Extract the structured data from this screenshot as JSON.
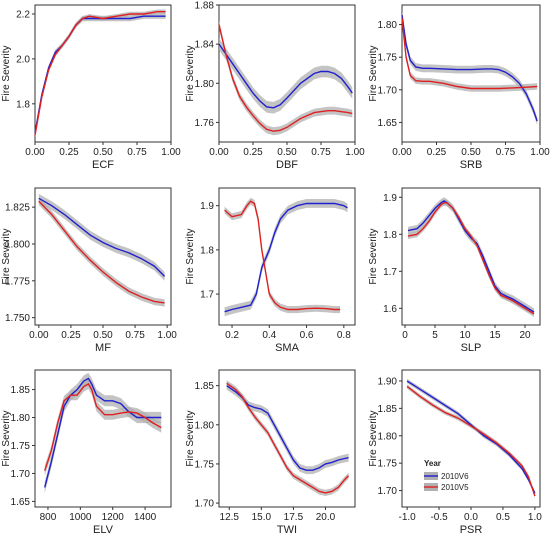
{
  "ylabel": "Fire Severity",
  "legend": {
    "title": "Year",
    "entries": [
      "2010V6",
      "2010V5"
    ],
    "colors": [
      "#2020d0",
      "#e02020"
    ],
    "ribbon_color": "#b0b0b0"
  },
  "chart_data": [
    {
      "type": "line",
      "xlabel": "ECF",
      "ylabel": "Fire Severity",
      "xlim": [
        0,
        1
      ],
      "ylim": [
        1.63,
        2.24
      ],
      "x_ticks": [
        "0.00",
        "0.25",
        "0.50",
        "0.75",
        "1.00"
      ],
      "x_tick_values": [
        0,
        0.25,
        0.5,
        0.75,
        1
      ],
      "y_ticks": [
        "1.8",
        "2.0",
        "2.2"
      ],
      "y_tick_values": [
        1.8,
        2.0,
        2.2
      ],
      "series": [
        {
          "name": "2010V6",
          "x": [
            0,
            0.05,
            0.1,
            0.15,
            0.2,
            0.25,
            0.3,
            0.35,
            0.4,
            0.5,
            0.6,
            0.7,
            0.8,
            0.9,
            0.96
          ],
          "y": [
            1.67,
            1.84,
            1.96,
            2.03,
            2.06,
            2.1,
            2.15,
            2.18,
            2.18,
            2.18,
            2.18,
            2.18,
            2.19,
            2.19,
            2.19
          ]
        },
        {
          "name": "2010V5",
          "x": [
            0,
            0.05,
            0.1,
            0.15,
            0.2,
            0.25,
            0.3,
            0.35,
            0.4,
            0.5,
            0.6,
            0.7,
            0.8,
            0.9,
            0.96
          ],
          "y": [
            1.66,
            1.83,
            1.95,
            2.02,
            2.06,
            2.1,
            2.15,
            2.18,
            2.19,
            2.18,
            2.19,
            2.2,
            2.2,
            2.21,
            2.21
          ]
        }
      ]
    },
    {
      "type": "line",
      "xlabel": "DBF",
      "ylabel": "Fire Severity",
      "xlim": [
        0,
        1
      ],
      "ylim": [
        1.74,
        1.88
      ],
      "x_ticks": [
        "0.00",
        "0.25",
        "0.50",
        "0.75",
        "1.00"
      ],
      "x_tick_values": [
        0,
        0.25,
        0.5,
        0.75,
        1
      ],
      "y_ticks": [
        "1.76",
        "1.80",
        "1.84",
        "1.88"
      ],
      "y_tick_values": [
        1.76,
        1.8,
        1.84,
        1.88
      ],
      "series": [
        {
          "name": "2010V6",
          "x": [
            0,
            0.05,
            0.1,
            0.15,
            0.2,
            0.25,
            0.3,
            0.35,
            0.4,
            0.45,
            0.5,
            0.6,
            0.7,
            0.75,
            0.8,
            0.85,
            0.9,
            0.95,
            0.98
          ],
          "y": [
            1.84,
            1.83,
            1.82,
            1.81,
            1.8,
            1.79,
            1.782,
            1.776,
            1.775,
            1.778,
            1.785,
            1.8,
            1.81,
            1.812,
            1.812,
            1.81,
            1.805,
            1.796,
            1.79
          ]
        },
        {
          "name": "2010V5",
          "x": [
            0,
            0.05,
            0.1,
            0.15,
            0.2,
            0.25,
            0.3,
            0.35,
            0.4,
            0.45,
            0.5,
            0.6,
            0.7,
            0.8,
            0.85,
            0.9,
            0.95,
            0.98
          ],
          "y": [
            1.86,
            1.83,
            1.805,
            1.787,
            1.776,
            1.767,
            1.759,
            1.753,
            1.751,
            1.752,
            1.755,
            1.764,
            1.77,
            1.772,
            1.772,
            1.771,
            1.77,
            1.769
          ]
        }
      ]
    },
    {
      "type": "line",
      "xlabel": "SRB",
      "ylabel": "Fire Severity",
      "xlim": [
        0,
        1
      ],
      "ylim": [
        1.62,
        1.83
      ],
      "x_ticks": [
        "0.00",
        "0.25",
        "0.50",
        "0.75",
        "1.00"
      ],
      "x_tick_values": [
        0,
        0.25,
        0.5,
        0.75,
        1
      ],
      "y_ticks": [
        "1.65",
        "1.70",
        "1.75",
        "1.80"
      ],
      "y_tick_values": [
        1.65,
        1.7,
        1.75,
        1.8
      ],
      "series": [
        {
          "name": "2010V6",
          "x": [
            0,
            0.03,
            0.06,
            0.1,
            0.15,
            0.2,
            0.3,
            0.4,
            0.5,
            0.6,
            0.65,
            0.7,
            0.75,
            0.8,
            0.85,
            0.9,
            0.95,
            0.98
          ],
          "y": [
            1.815,
            1.77,
            1.745,
            1.735,
            1.733,
            1.733,
            1.732,
            1.731,
            1.731,
            1.732,
            1.732,
            1.731,
            1.727,
            1.72,
            1.71,
            1.694,
            1.67,
            1.652
          ]
        },
        {
          "name": "2010V5",
          "x": [
            0,
            0.03,
            0.06,
            0.1,
            0.15,
            0.2,
            0.3,
            0.4,
            0.5,
            0.6,
            0.7,
            0.8,
            0.9,
            0.98
          ],
          "y": [
            1.81,
            1.75,
            1.722,
            1.714,
            1.713,
            1.713,
            1.71,
            1.705,
            1.702,
            1.702,
            1.702,
            1.703,
            1.704,
            1.705
          ]
        }
      ]
    },
    {
      "type": "line",
      "xlabel": "MF",
      "ylabel": "Fire Severity",
      "xlim": [
        -0.03,
        1.03
      ],
      "ylim": [
        1.745,
        1.838
      ],
      "x_ticks": [
        "0.00",
        "0.25",
        "0.50",
        "0.75",
        "1.00"
      ],
      "x_tick_values": [
        0,
        0.25,
        0.5,
        0.75,
        1
      ],
      "y_ticks": [
        "1.750",
        "1.775",
        "1.800",
        "1.825"
      ],
      "y_tick_values": [
        1.75,
        1.775,
        1.8,
        1.825
      ],
      "series": [
        {
          "name": "2010V6",
          "x": [
            0,
            0.1,
            0.2,
            0.3,
            0.4,
            0.5,
            0.6,
            0.7,
            0.8,
            0.9,
            0.98
          ],
          "y": [
            1.831,
            1.826,
            1.82,
            1.813,
            1.806,
            1.801,
            1.797,
            1.794,
            1.79,
            1.785,
            1.778
          ]
        },
        {
          "name": "2010V5",
          "x": [
            0,
            0.1,
            0.2,
            0.3,
            0.4,
            0.5,
            0.6,
            0.7,
            0.8,
            0.9,
            0.98
          ],
          "y": [
            1.829,
            1.82,
            1.809,
            1.798,
            1.789,
            1.781,
            1.774,
            1.768,
            1.764,
            1.761,
            1.76
          ]
        }
      ]
    },
    {
      "type": "line",
      "xlabel": "SMA",
      "ylabel": "Fire Severity",
      "xlim": [
        0.13,
        0.86
      ],
      "ylim": [
        1.63,
        1.94
      ],
      "x_ticks": [
        "0.2",
        "0.4",
        "0.6",
        "0.8"
      ],
      "x_tick_values": [
        0.2,
        0.4,
        0.6,
        0.8
      ],
      "y_ticks": [
        "1.7",
        "1.8",
        "1.9"
      ],
      "y_tick_values": [
        1.7,
        1.8,
        1.9
      ],
      "series": [
        {
          "name": "2010V6",
          "x": [
            0.16,
            0.2,
            0.25,
            0.3,
            0.33,
            0.36,
            0.4,
            0.43,
            0.46,
            0.5,
            0.55,
            0.6,
            0.65,
            0.7,
            0.75,
            0.8,
            0.82
          ],
          "y": [
            1.66,
            1.665,
            1.67,
            1.675,
            1.7,
            1.76,
            1.8,
            1.84,
            1.87,
            1.89,
            1.9,
            1.905,
            1.905,
            1.905,
            1.905,
            1.9,
            1.895
          ]
        },
        {
          "name": "2010V5",
          "x": [
            0.16,
            0.2,
            0.25,
            0.28,
            0.3,
            0.32,
            0.34,
            0.36,
            0.38,
            0.4,
            0.43,
            0.46,
            0.5,
            0.55,
            0.6,
            0.65,
            0.7,
            0.75,
            0.78
          ],
          "y": [
            1.89,
            1.875,
            1.88,
            1.9,
            1.91,
            1.905,
            1.87,
            1.8,
            1.75,
            1.7,
            1.68,
            1.67,
            1.665,
            1.665,
            1.667,
            1.668,
            1.667,
            1.665,
            1.665
          ]
        }
      ]
    },
    {
      "type": "line",
      "xlabel": "SLP",
      "ylabel": "Fire Severity",
      "xlim": [
        -0.5,
        22.5
      ],
      "ylim": [
        1.555,
        1.925
      ],
      "x_ticks": [
        "0",
        "5",
        "10",
        "15",
        "20"
      ],
      "x_tick_values": [
        0,
        5,
        10,
        15,
        20
      ],
      "y_ticks": [
        "1.6",
        "1.7",
        "1.8",
        "1.9"
      ],
      "y_tick_values": [
        1.6,
        1.7,
        1.8,
        1.9
      ],
      "series": [
        {
          "name": "2010V6",
          "x": [
            0.5,
            2,
            3,
            4,
            5,
            6,
            6.5,
            7,
            8,
            9,
            10,
            11,
            12,
            13,
            14,
            15,
            16,
            17,
            18,
            19,
            20,
            21,
            21.5
          ],
          "y": [
            1.81,
            1.815,
            1.83,
            1.85,
            1.87,
            1.885,
            1.89,
            1.885,
            1.87,
            1.84,
            1.81,
            1.79,
            1.775,
            1.74,
            1.7,
            1.66,
            1.64,
            1.632,
            1.625,
            1.615,
            1.605,
            1.595,
            1.59
          ]
        },
        {
          "name": "2010V5",
          "x": [
            0.5,
            2,
            3,
            4,
            5,
            6,
            6.5,
            7,
            8,
            9,
            10,
            11,
            12,
            13,
            14,
            15,
            16,
            17,
            18,
            19,
            20,
            21,
            21.5
          ],
          "y": [
            1.795,
            1.8,
            1.815,
            1.835,
            1.86,
            1.88,
            1.885,
            1.885,
            1.87,
            1.845,
            1.815,
            1.795,
            1.77,
            1.73,
            1.69,
            1.655,
            1.635,
            1.628,
            1.62,
            1.61,
            1.6,
            1.59,
            1.585
          ]
        }
      ]
    },
    {
      "type": "line",
      "xlabel": "ELV",
      "ylabel": "Fire Severity",
      "xlim": [
        720,
        1560
      ],
      "ylim": [
        1.64,
        1.885
      ],
      "x_ticks": [
        "800",
        "1000",
        "1200",
        "1400"
      ],
      "x_tick_values": [
        800,
        1000,
        1200,
        1400
      ],
      "y_ticks": [
        "1.65",
        "1.70",
        "1.75",
        "1.80",
        "1.85"
      ],
      "y_tick_values": [
        1.65,
        1.7,
        1.75,
        1.8,
        1.85
      ],
      "series": [
        {
          "name": "2010V6",
          "x": [
            780,
            820,
            860,
            900,
            940,
            980,
            1020,
            1050,
            1070,
            1100,
            1150,
            1200,
            1250,
            1300,
            1350,
            1400,
            1450,
            1500
          ],
          "y": [
            1.675,
            1.72,
            1.77,
            1.82,
            1.84,
            1.85,
            1.865,
            1.87,
            1.86,
            1.84,
            1.83,
            1.83,
            1.825,
            1.81,
            1.8,
            1.8,
            1.8,
            1.8
          ]
        },
        {
          "name": "2010V5",
          "x": [
            780,
            820,
            860,
            900,
            940,
            980,
            1020,
            1050,
            1070,
            1100,
            1150,
            1200,
            1250,
            1300,
            1350,
            1400,
            1450,
            1500
          ],
          "y": [
            1.705,
            1.74,
            1.79,
            1.83,
            1.84,
            1.84,
            1.855,
            1.86,
            1.85,
            1.82,
            1.805,
            1.805,
            1.808,
            1.81,
            1.808,
            1.8,
            1.79,
            1.782
          ]
        }
      ]
    },
    {
      "type": "line",
      "xlabel": "TWI",
      "ylabel": "Fire Severity",
      "xlim": [
        11.7,
        22.3
      ],
      "ylim": [
        1.695,
        1.87
      ],
      "x_ticks": [
        "12.5",
        "15.0",
        "17.5",
        "20.0"
      ],
      "x_tick_values": [
        12.5,
        15,
        17.5,
        20
      ],
      "y_ticks": [
        "1.70",
        "1.75",
        "1.80",
        "1.85"
      ],
      "y_tick_values": [
        1.7,
        1.75,
        1.8,
        1.85
      ],
      "series": [
        {
          "name": "2010V6",
          "x": [
            12.3,
            13,
            13.5,
            14,
            14.5,
            15,
            15.5,
            16,
            16.5,
            17,
            17.5,
            18,
            18.5,
            19,
            19.5,
            20,
            20.5,
            21,
            21.5,
            21.8
          ],
          "y": [
            1.85,
            1.842,
            1.835,
            1.825,
            1.822,
            1.82,
            1.815,
            1.8,
            1.785,
            1.77,
            1.755,
            1.745,
            1.742,
            1.742,
            1.745,
            1.75,
            1.752,
            1.755,
            1.757,
            1.758
          ]
        },
        {
          "name": "2010V5",
          "x": [
            12.3,
            13,
            13.5,
            14,
            14.5,
            15,
            15.5,
            16,
            16.5,
            17,
            17.5,
            18,
            18.5,
            19,
            19.5,
            20,
            20.5,
            21,
            21.5,
            21.8
          ],
          "y": [
            1.853,
            1.845,
            1.836,
            1.822,
            1.81,
            1.8,
            1.79,
            1.775,
            1.76,
            1.745,
            1.735,
            1.73,
            1.725,
            1.72,
            1.715,
            1.713,
            1.715,
            1.72,
            1.73,
            1.735
          ]
        }
      ]
    },
    {
      "type": "line",
      "xlabel": "PSR",
      "ylabel": "Fire Severity",
      "xlim": [
        -1.08,
        1.08
      ],
      "ylim": [
        1.67,
        1.92
      ],
      "x_ticks": [
        "-1.0",
        "-0.5",
        "0.0",
        "0.5",
        "1.0"
      ],
      "x_tick_values": [
        -1,
        -0.5,
        0,
        0.5,
        1
      ],
      "y_ticks": [
        "1.70",
        "1.75",
        "1.80",
        "1.85",
        "1.90"
      ],
      "y_tick_values": [
        1.7,
        1.75,
        1.8,
        1.85,
        1.9
      ],
      "series": [
        {
          "name": "2010V6",
          "x": [
            -1,
            -0.8,
            -0.6,
            -0.4,
            -0.2,
            0,
            0.2,
            0.4,
            0.6,
            0.8,
            0.9,
            1
          ],
          "y": [
            1.9,
            1.885,
            1.87,
            1.855,
            1.84,
            1.82,
            1.8,
            1.785,
            1.765,
            1.74,
            1.72,
            1.695
          ]
        },
        {
          "name": "2010V5",
          "x": [
            -1,
            -0.8,
            -0.6,
            -0.4,
            -0.2,
            0,
            0.2,
            0.4,
            0.6,
            0.8,
            0.9,
            1
          ],
          "y": [
            1.89,
            1.872,
            1.856,
            1.842,
            1.832,
            1.818,
            1.803,
            1.787,
            1.768,
            1.745,
            1.725,
            1.69
          ]
        }
      ]
    }
  ]
}
